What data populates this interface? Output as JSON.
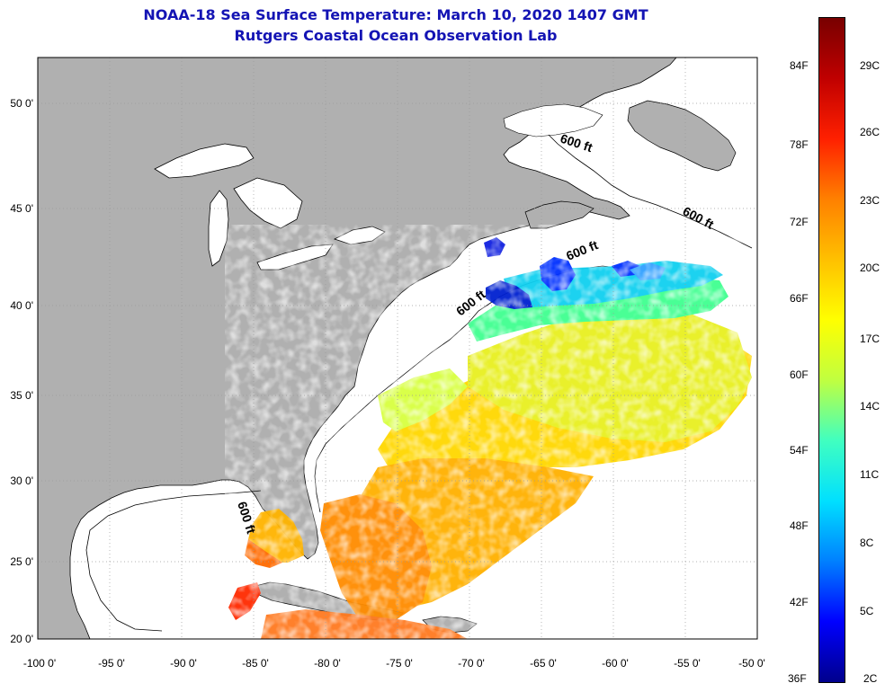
{
  "title": {
    "line1": "NOAA-18 Sea Surface Temperature:  March 10, 2020 1407 GMT",
    "line2": "Rutgers Coastal Ocean Observation Lab",
    "color": "#1414b4"
  },
  "axes": {
    "lon_labels": [
      "-100 0'",
      "-95 0'",
      "-90 0'",
      "-85 0'",
      "-80 0'",
      "-75 0'",
      "-70 0'",
      "-65 0'",
      "-60 0'",
      "-55 0'",
      "-50 0'"
    ],
    "lat_labels": [
      "50 0'",
      "45 0'",
      "40 0'",
      "35 0'",
      "30 0'",
      "25 0'",
      "20 0'"
    ]
  },
  "contour_labels": [
    "600 ft",
    "600 ft",
    "600 ft",
    "600 ft",
    "600 ft"
  ],
  "colorbar": {
    "fahrenheit": [
      "84F",
      "78F",
      "72F",
      "66F",
      "60F",
      "54F",
      "48F",
      "42F",
      "36F"
    ],
    "celsius": [
      "29C",
      "26C",
      "23C",
      "20C",
      "17C",
      "14C",
      "11C",
      "8C",
      "5C",
      "2C"
    ]
  },
  "colors": {
    "land": "#b0b0b0",
    "ocean": "#ffffff",
    "grid": "#9a9a9a",
    "scale": [
      "#00008c",
      "#0000ff",
      "#0080ff",
      "#00e0ff",
      "#40ffc0",
      "#c0ff40",
      "#ffff00",
      "#ffc000",
      "#ff8000",
      "#ff2000",
      "#c00000",
      "#780000"
    ]
  }
}
